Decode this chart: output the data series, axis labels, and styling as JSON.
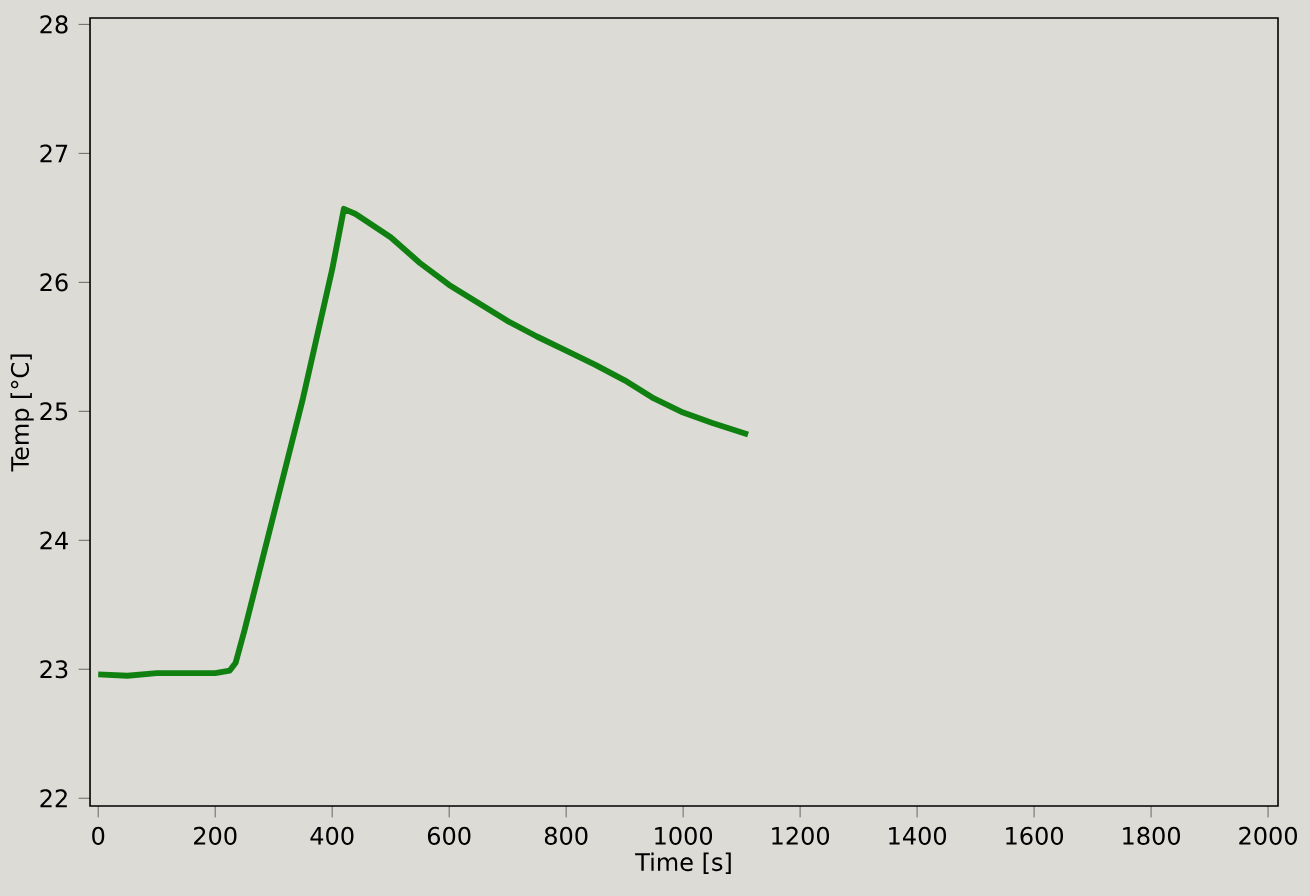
{
  "chart_data": {
    "type": "line",
    "xlabel": "Time [s]",
    "ylabel": "Temp [°C]",
    "xlim": [
      -14,
      2017
    ],
    "ylim": [
      21.94,
      28.05
    ],
    "xticks": [
      0,
      200,
      400,
      600,
      800,
      1000,
      1200,
      1400,
      1600,
      1800,
      2000
    ],
    "yticks": [
      22,
      23,
      24,
      25,
      26,
      27,
      28
    ],
    "series": [
      {
        "color": "#108010",
        "x": [
          0,
          50,
          100,
          150,
          200,
          225,
          235,
          250,
          275,
          300,
          325,
          350,
          375,
          400,
          420,
          440,
          470,
          500,
          550,
          600,
          650,
          700,
          750,
          800,
          850,
          900,
          950,
          1000,
          1050,
          1111
        ],
        "values": [
          22.96,
          22.95,
          22.97,
          22.97,
          22.97,
          22.99,
          23.05,
          23.3,
          23.75,
          24.2,
          24.65,
          25.1,
          25.6,
          26.1,
          26.57,
          26.53,
          26.44,
          26.35,
          26.15,
          25.98,
          25.84,
          25.7,
          25.58,
          25.47,
          25.36,
          25.24,
          25.1,
          24.99,
          24.91,
          24.82
        ]
      }
    ]
  }
}
